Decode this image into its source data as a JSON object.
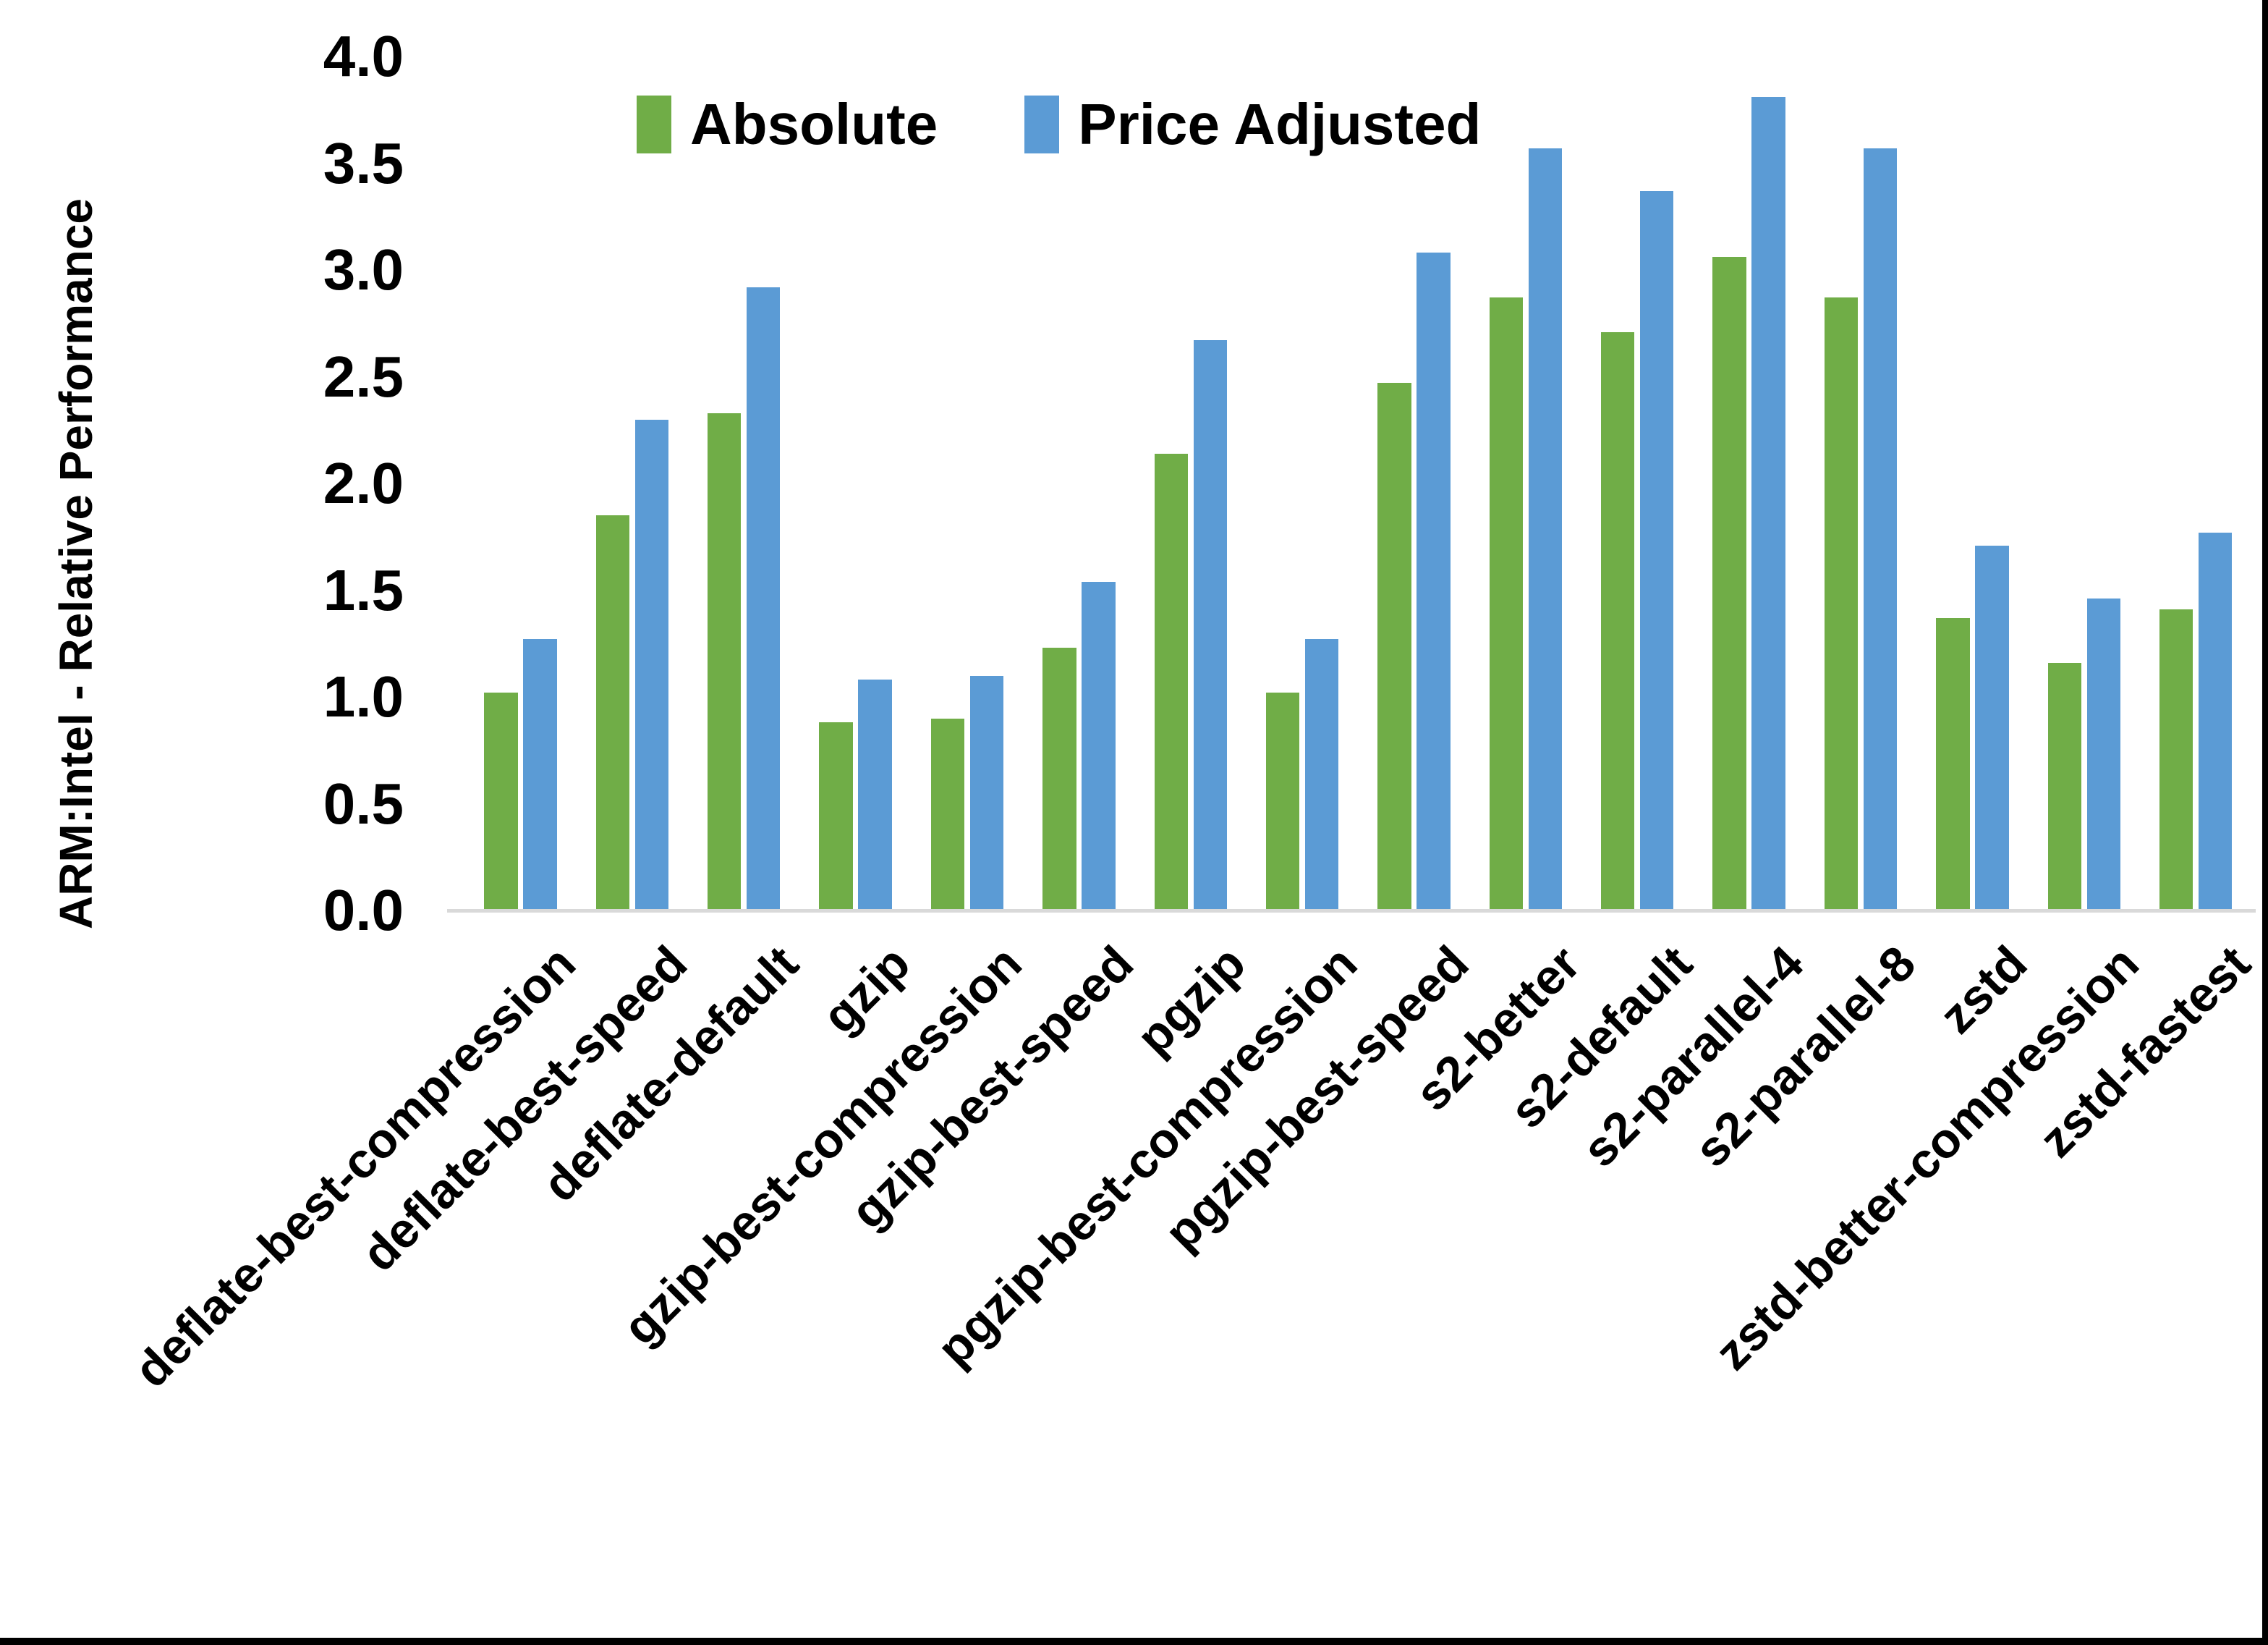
{
  "y_axis": {
    "title": "ARM:Intel - Relative Performance",
    "ticks": [
      "4.0",
      "3.5",
      "3.0",
      "2.5",
      "2.0",
      "1.5",
      "1.0",
      "0.5",
      "0.0"
    ],
    "min": 0.0,
    "max": 4.0
  },
  "legend": [
    {
      "label": "Absolute",
      "color": "#70AD47"
    },
    {
      "label": "Price Adjusted",
      "color": "#5B9BD5"
    }
  ],
  "chart_data": {
    "type": "bar",
    "title": "",
    "xlabel": "",
    "ylabel": "ARM:Intel - Relative Performance",
    "ylim": [
      0.0,
      4.0
    ],
    "ytick_step": 0.5,
    "grid": false,
    "legend_position": "top-center",
    "axis_line_color": "#d9d9d9",
    "categories": [
      "deflate-best-compression",
      "deflate-best-speed",
      "deflate-default",
      "gzip",
      "gzip-best-compression",
      "gzip-best-speed",
      "pgzip",
      "pgzip-best-compression",
      "pgzip-best-speed",
      "s2-better",
      "s2-default",
      "s2-parallel-4",
      "s2-parallel-8",
      "zstd",
      "zstd-better-compression",
      "zstd-fastest"
    ],
    "series": [
      {
        "name": "Absolute",
        "color": "#70AD47",
        "values": [
          1.02,
          1.85,
          2.33,
          0.88,
          0.9,
          1.23,
          2.14,
          1.02,
          2.47,
          2.87,
          2.71,
          3.06,
          2.87,
          1.37,
          1.16,
          1.41
        ]
      },
      {
        "name": "Price Adjusted",
        "color": "#5B9BD5",
        "values": [
          1.27,
          2.3,
          2.92,
          1.08,
          1.1,
          1.54,
          2.67,
          1.27,
          3.08,
          3.57,
          3.37,
          3.81,
          3.57,
          1.71,
          1.46,
          1.77
        ]
      }
    ]
  }
}
